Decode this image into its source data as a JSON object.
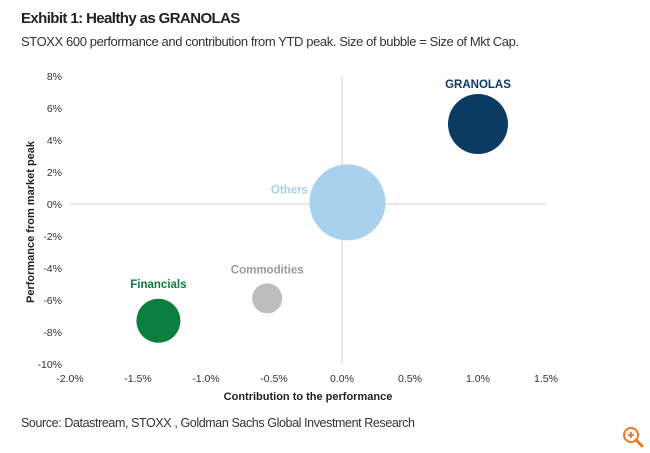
{
  "header": {
    "title": "Exhibit 1: Healthy as GRANOLAS",
    "subtitle": "STOXX 600 performance and contribution from YTD peak. Size of bubble = Size of Mkt Cap."
  },
  "footer": {
    "source": "Source: Datastream, STOXX , Goldman Sachs Global Investment Research"
  },
  "zoom_icon": "zoom-in-icon",
  "chart_data": {
    "type": "scatter",
    "subtype": "bubble",
    "xlabel": "Contribution to the performance",
    "ylabel": "Performance from market peak",
    "xlim": [
      -2.0,
      1.5
    ],
    "ylim": [
      -10,
      8
    ],
    "xticks": [
      "-2.0%",
      "-1.5%",
      "-1.0%",
      "-0.5%",
      "0.0%",
      "0.5%",
      "1.0%",
      "1.5%"
    ],
    "yticks": [
      "8%",
      "6%",
      "4%",
      "2%",
      "0%",
      "-2%",
      "-4%",
      "-6%",
      "-8%",
      "-10%"
    ],
    "grid": false,
    "series": [
      {
        "name": "GRANOLAS",
        "x": 1.0,
        "y": 5.0,
        "size": 30,
        "color": "#0b3a63",
        "label_color": "#0b3a63"
      },
      {
        "name": "Others",
        "x": 0.04,
        "y": 0.1,
        "size": 38,
        "color": "#a9d0ec",
        "label_color": "#a9d0ec"
      },
      {
        "name": "Commodities",
        "x": -0.55,
        "y": -5.9,
        "size": 15,
        "color": "#bdbdbd",
        "label_color": "#9a9a9a"
      },
      {
        "name": "Financials",
        "x": -1.35,
        "y": -7.3,
        "size": 22,
        "color": "#0b7d3e",
        "label_color": "#0b7d3e"
      }
    ]
  }
}
